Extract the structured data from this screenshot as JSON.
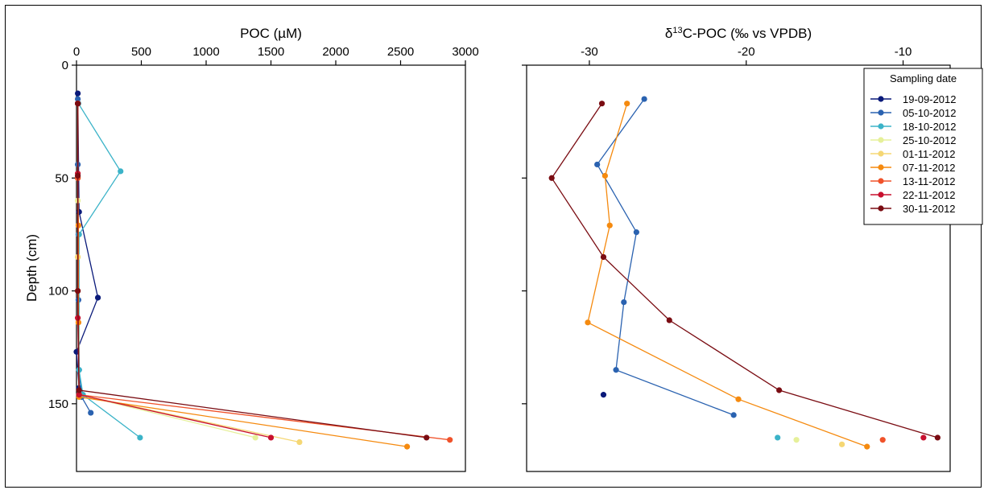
{
  "chart_data": [
    {
      "type": "line",
      "title": "POC (µM)",
      "xlabel": "POC (µM)",
      "ylabel": "Depth (cm)",
      "xlim": [
        0,
        3000
      ],
      "ylim": [
        0,
        180
      ],
      "xticks": [
        0,
        500,
        1000,
        1500,
        2000,
        2500,
        3000
      ],
      "yticks": [
        0,
        50,
        100,
        150
      ],
      "y_inverted": true,
      "x_axis_position": "top",
      "series": [
        {
          "name": "19-09-2012",
          "color": "#0a1a7a",
          "points": [
            [
              10,
              12.5
            ],
            [
              20,
              65
            ],
            [
              165,
              103
            ],
            [
              0,
              127
            ],
            [
              20,
              143
            ],
            [
              30,
              146
            ]
          ]
        },
        {
          "name": "05-10-2012",
          "color": "#2a62b0",
          "points": [
            [
              10,
              15
            ],
            [
              10,
              44
            ],
            [
              15,
              75
            ],
            [
              15,
              104
            ],
            [
              20,
              135
            ],
            [
              40,
              147
            ],
            [
              110,
              154
            ]
          ]
        },
        {
          "name": "18-10-2012",
          "color": "#3bb3c8",
          "points": [
            [
              15,
              17
            ],
            [
              340,
              47
            ],
            [
              20,
              75
            ],
            [
              20,
              135
            ],
            [
              50,
              146
            ],
            [
              490,
              165
            ]
          ]
        },
        {
          "name": "25-10-2012",
          "color": "#e6f09a",
          "points": [
            [
              10,
              17
            ],
            [
              10,
              60
            ],
            [
              10,
              85
            ],
            [
              20,
              146
            ],
            [
              1380,
              165
            ]
          ]
        },
        {
          "name": "01-11-2012",
          "color": "#f5d774",
          "points": [
            [
              10,
              17
            ],
            [
              10,
              50
            ],
            [
              10,
              85
            ],
            [
              20,
              146
            ],
            [
              1720,
              167
            ]
          ]
        },
        {
          "name": "07-11-2012",
          "color": "#f58a0f",
          "points": [
            [
              10,
              17
            ],
            [
              10,
              50
            ],
            [
              15,
              71
            ],
            [
              15,
              114
            ],
            [
              20,
              147
            ],
            [
              2550,
              169
            ]
          ]
        },
        {
          "name": "13-11-2012",
          "color": "#f0522a",
          "points": [
            [
              10,
              17
            ],
            [
              10,
              50
            ],
            [
              10,
              100
            ],
            [
              20,
              146
            ],
            [
              2880,
              166
            ]
          ]
        },
        {
          "name": "22-11-2012",
          "color": "#c8102e",
          "points": [
            [
              10,
              17
            ],
            [
              10,
              48
            ],
            [
              10,
              112
            ],
            [
              20,
              146
            ],
            [
              1500,
              165
            ]
          ]
        },
        {
          "name": "30-11-2012",
          "color": "#7a0c12",
          "points": [
            [
              10,
              17
            ],
            [
              10,
              49
            ],
            [
              10,
              100
            ],
            [
              20,
              144
            ],
            [
              2700,
              165
            ]
          ]
        }
      ]
    },
    {
      "type": "line",
      "title": "δ13C-POC (‰ vs VPDB)",
      "ylabel": "",
      "xlim": [
        -34,
        -7
      ],
      "ylim": [
        0,
        180
      ],
      "xticks": [
        -30,
        -20,
        -10
      ],
      "yticks": [
        0,
        50,
        100,
        150
      ],
      "y_inverted": true,
      "x_axis_position": "top",
      "legend": {
        "title": "Sampling date",
        "placement": "top-right"
      },
      "series": [
        {
          "name": "19-09-2012",
          "color": "#0a1a7a",
          "points": [
            [
              -29.1,
              146
            ]
          ]
        },
        {
          "name": "05-10-2012",
          "color": "#2a62b0",
          "points": [
            [
              -26.5,
              15
            ],
            [
              -29.5,
              44
            ],
            [
              -27.0,
              74
            ],
            [
              -27.8,
              105
            ],
            [
              -28.3,
              135
            ],
            [
              -20.8,
              155
            ]
          ]
        },
        {
          "name": "18-10-2012",
          "color": "#3bb3c8",
          "points": [
            [
              -18.0,
              165
            ]
          ]
        },
        {
          "name": "25-10-2012",
          "color": "#e6f09a",
          "points": [
            [
              -16.8,
              166
            ]
          ]
        },
        {
          "name": "01-11-2012",
          "color": "#f5d774",
          "points": [
            [
              -13.9,
              168
            ]
          ]
        },
        {
          "name": "07-11-2012",
          "color": "#f58a0f",
          "points": [
            [
              -27.6,
              17
            ],
            [
              -29.0,
              49
            ],
            [
              -28.7,
              71
            ],
            [
              -30.1,
              114
            ],
            [
              -20.5,
              148
            ],
            [
              -12.3,
              169
            ]
          ]
        },
        {
          "name": "13-11-2012",
          "color": "#f0522a",
          "points": [
            [
              -11.3,
              166
            ]
          ]
        },
        {
          "name": "22-11-2012",
          "color": "#c8102e",
          "points": [
            [
              -8.7,
              165
            ]
          ]
        },
        {
          "name": "30-11-2012",
          "color": "#7a0c12",
          "points": [
            [
              -29.2,
              17
            ],
            [
              -32.4,
              50
            ],
            [
              -29.1,
              85
            ],
            [
              -24.9,
              113
            ],
            [
              -17.9,
              144
            ],
            [
              -7.8,
              165
            ]
          ]
        }
      ]
    }
  ]
}
